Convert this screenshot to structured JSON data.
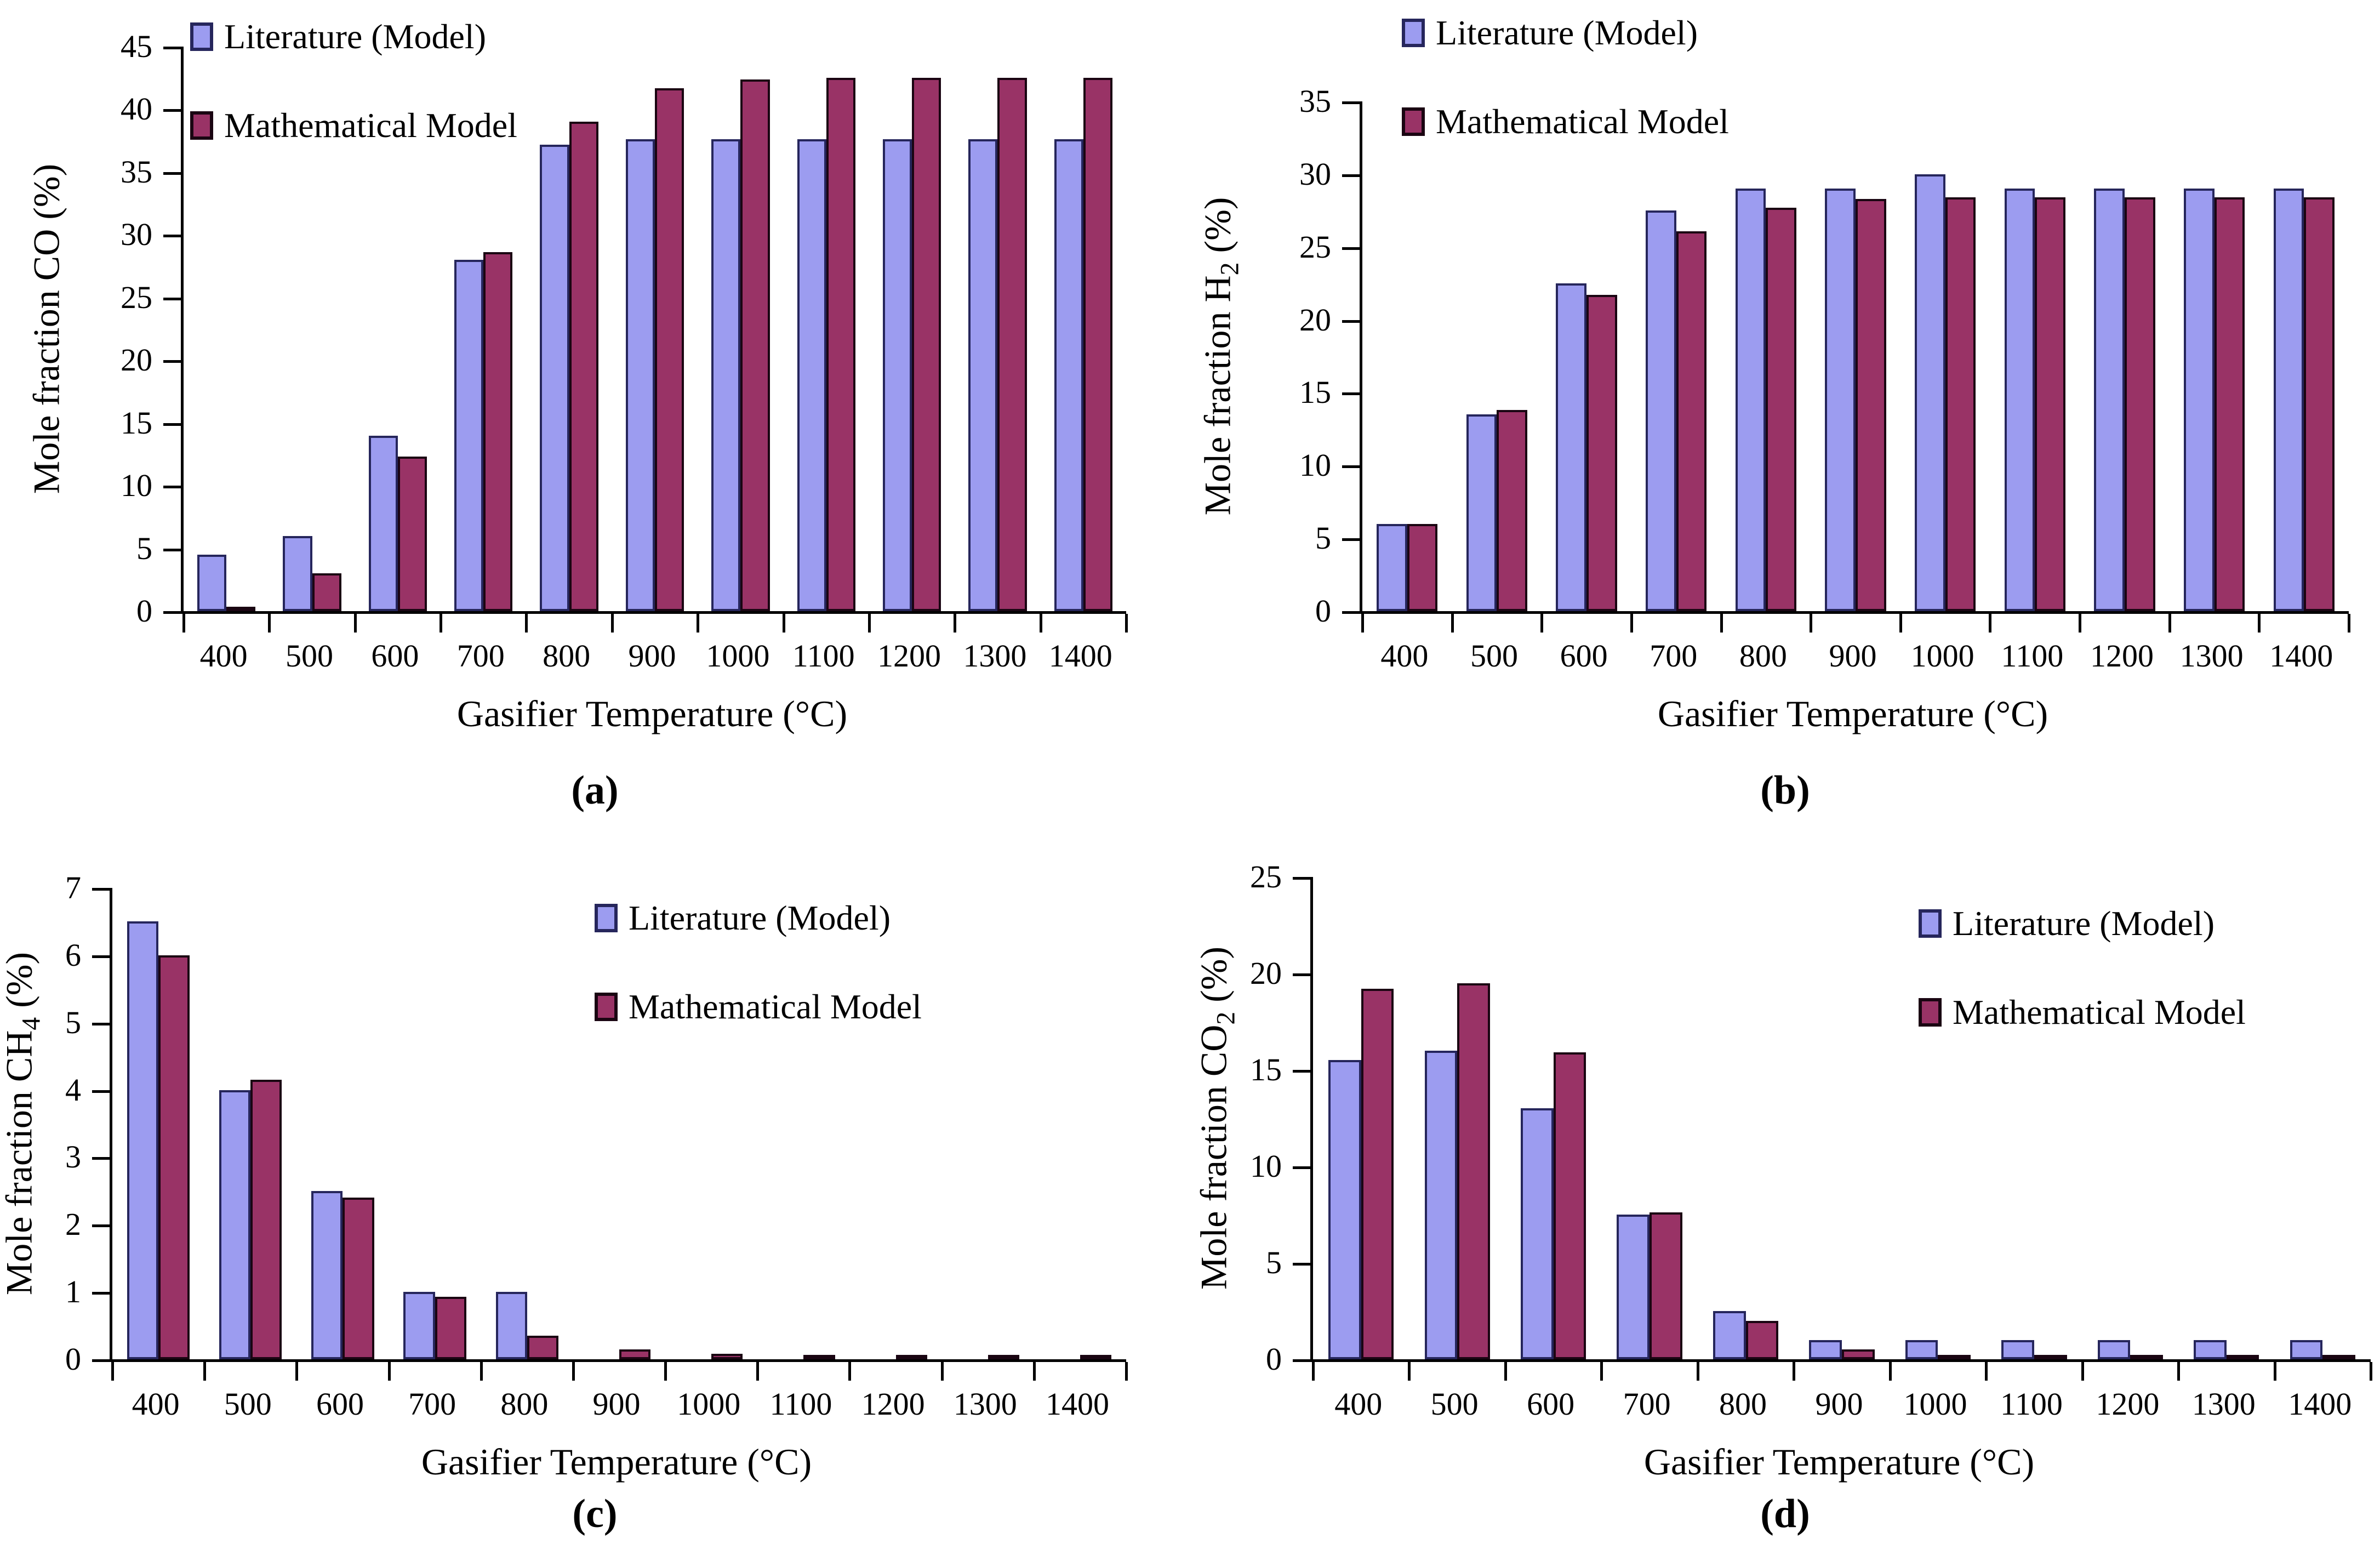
{
  "figure": {
    "legend": {
      "series": [
        {
          "key": "lit",
          "label": "Literature (Model)"
        },
        {
          "key": "math",
          "label": "Mathematical Model"
        }
      ]
    },
    "colors": {
      "literature_fill": "#9c9cf0",
      "literature_border": "#26265c",
      "mathematical_fill": "#993366",
      "mathematical_border": "#1a0512",
      "axis": "#000000",
      "background": "#ffffff"
    }
  },
  "chart_data": [
    {
      "id": "a",
      "type": "bar",
      "caption": "(a)",
      "xlabel": "Gasifier Temperature (°C)",
      "ylabel": "Mole fraction CO (%)",
      "ylabel_parts": {
        "prefix": "Mole fraction CO",
        "sub": "",
        "suffix": " (%)"
      },
      "categories": [
        400,
        500,
        600,
        700,
        800,
        900,
        1000,
        1100,
        1200,
        1300,
        1400
      ],
      "ylim": [
        0,
        45
      ],
      "ytick_step": 5,
      "grid": false,
      "legend_position": "top-left-inside",
      "series": [
        {
          "name": "Literature (Model)",
          "values": [
            4.5,
            6.0,
            14.0,
            28.0,
            37.2,
            37.6,
            37.6,
            37.6,
            37.6,
            37.6,
            37.6
          ]
        },
        {
          "name": "Mathematical Model",
          "values": [
            0.3,
            3.0,
            12.3,
            28.6,
            39.0,
            41.7,
            42.4,
            42.5,
            42.5,
            42.5,
            42.5
          ]
        }
      ]
    },
    {
      "id": "b",
      "type": "bar",
      "caption": "(b)",
      "xlabel": "Gasifier Temperature (°C)",
      "ylabel": "Mole fraction H2 (%)",
      "ylabel_parts": {
        "prefix": "Mole fraction H",
        "sub": "2",
        "suffix": " (%)"
      },
      "categories": [
        400,
        500,
        600,
        700,
        800,
        900,
        1000,
        1100,
        1200,
        1300,
        1400
      ],
      "ylim": [
        0,
        35
      ],
      "ytick_step": 5,
      "grid": false,
      "legend_position": "top-left-inside",
      "series": [
        {
          "name": "Literature (Model)",
          "values": [
            6.0,
            13.5,
            22.5,
            27.5,
            29.0,
            29.0,
            30.0,
            29.0,
            29.0,
            29.0,
            29.0
          ]
        },
        {
          "name": "Mathematical Model",
          "values": [
            6.0,
            13.8,
            21.7,
            26.1,
            27.7,
            28.3,
            28.4,
            28.4,
            28.4,
            28.4,
            28.4
          ]
        }
      ]
    },
    {
      "id": "c",
      "type": "bar",
      "caption": "(c)",
      "xlabel": "Gasifier Temperature (°C)",
      "ylabel": "Mole fraction CH4 (%)",
      "ylabel_parts": {
        "prefix": "Mole fraction CH",
        "sub": "4",
        "suffix": " (%)"
      },
      "categories": [
        400,
        500,
        600,
        700,
        800,
        900,
        1000,
        1100,
        1200,
        1300,
        1400
      ],
      "ylim": [
        0,
        7
      ],
      "ytick_step": 1,
      "grid": false,
      "legend_position": "top-right-inside",
      "series": [
        {
          "name": "Literature (Model)",
          "values": [
            6.5,
            4.0,
            2.5,
            1.0,
            1.0,
            0,
            0,
            0,
            0,
            0,
            0
          ]
        },
        {
          "name": "Mathematical Model",
          "values": [
            6.0,
            4.15,
            2.4,
            0.93,
            0.35,
            0.15,
            0.08,
            0.05,
            0.03,
            0.03,
            0.03
          ]
        }
      ]
    },
    {
      "id": "d",
      "type": "bar",
      "caption": "(d)",
      "xlabel": "Gasifier Temperature (°C)",
      "ylabel": "Mole fraction CO2 (%)",
      "ylabel_parts": {
        "prefix": "Mole fraction CO",
        "sub": "2",
        "suffix": " (%)"
      },
      "categories": [
        400,
        500,
        600,
        700,
        800,
        900,
        1000,
        1100,
        1200,
        1300,
        1400
      ],
      "ylim": [
        0,
        25
      ],
      "ytick_step": 5,
      "grid": false,
      "legend_position": "top-right-inside",
      "series": [
        {
          "name": "Literature (Model)",
          "values": [
            15.5,
            16.0,
            13.0,
            7.5,
            2.5,
            1.0,
            1.0,
            1.0,
            1.0,
            1.0,
            1.0
          ]
        },
        {
          "name": "Mathematical Model",
          "values": [
            19.2,
            19.5,
            15.9,
            7.6,
            2.0,
            0.5,
            0.1,
            0.1,
            0.1,
            0.1,
            0.1
          ]
        }
      ]
    }
  ]
}
